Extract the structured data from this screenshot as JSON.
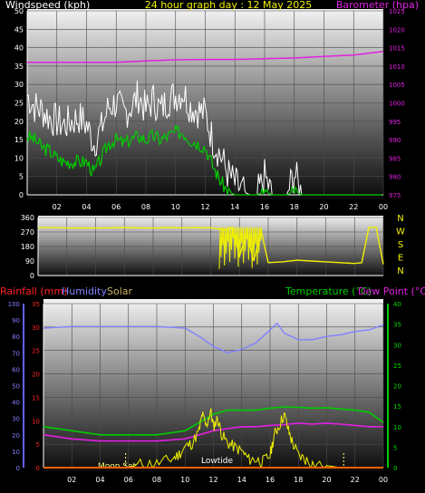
{
  "header": {
    "windspeed_label": "Windspeed (kph)",
    "date_label": "24 hour graph day : 12 May 2025",
    "barometer_label": "Barometer (hpa)"
  },
  "mid_header": {
    "rainfall_label": "Rainfall (mm)",
    "humidity_label": "Humidity",
    "solar_label": "Solar",
    "temperature_label": "Temperature (°C)",
    "dewpoint_label": "Dew Point (°C)"
  },
  "annotations": {
    "moonset": "Moon Set",
    "lowtide": "Lowtide"
  },
  "colors": {
    "wind_gust": "#ffffff",
    "wind_avg": "#00cc00",
    "barometer": "#e020e0",
    "direction": "#f0f000",
    "solar": "#f0f000",
    "humidity": "#8080ff",
    "temperature": "#00cc00",
    "dewpoint": "#e020e0",
    "rain": "#ff0000",
    "moon": "#ffff80",
    "tide": "#f0f000",
    "temp_axis": "#00dd00",
    "dew_axis": "#e020e0"
  },
  "chart_data": [
    {
      "type": "line",
      "name": "wind_barometer",
      "x_ticks": [
        "02",
        "04",
        "06",
        "08",
        "10",
        "12",
        "14",
        "16",
        "18",
        "20",
        "22",
        "00"
      ],
      "ylim": [
        0,
        50
      ],
      "y_ticks": [
        "0",
        "5",
        "10",
        "15",
        "20",
        "25",
        "30",
        "35",
        "40",
        "45",
        "50"
      ],
      "y2lim": [
        975,
        1025
      ],
      "y2_ticks": [
        "975",
        "980",
        "985",
        "990",
        "995",
        "1000",
        "1005",
        "1010",
        "1015",
        "1020",
        "1025"
      ],
      "series": [
        {
          "key": "gust",
          "x": [
            0,
            0.5,
            1,
            1.5,
            2,
            2.5,
            3,
            3.5,
            4,
            4.5,
            5,
            5.5,
            6,
            6.5,
            7,
            7.5,
            8,
            8.5,
            9,
            9.5,
            10,
            10.5,
            11,
            11.5,
            12,
            12.5,
            13,
            13.5,
            14,
            14.5,
            15,
            15.5,
            16,
            16.5,
            17,
            17.5,
            18,
            18.5,
            19,
            19.5,
            20,
            20.5,
            21,
            21.5,
            22,
            22.5,
            23,
            23.5,
            24
          ],
          "values": [
            27,
            24,
            23,
            21,
            20,
            19,
            20,
            21,
            19,
            14,
            18,
            24,
            25,
            22,
            24,
            27,
            23,
            26,
            23,
            26,
            27,
            28,
            24,
            23,
            22,
            15,
            11,
            6,
            3,
            1,
            0,
            0,
            5,
            0,
            0,
            0,
            6,
            0,
            0,
            0,
            0,
            0,
            0,
            0,
            0,
            0,
            0,
            0,
            0
          ]
        },
        {
          "key": "avg",
          "x": [
            0,
            0.5,
            1,
            1.5,
            2,
            2.5,
            3,
            3.5,
            4,
            4.5,
            5,
            5.5,
            6,
            6.5,
            7,
            7.5,
            8,
            8.5,
            9,
            9.5,
            10,
            10.5,
            11,
            11.5,
            12,
            12.5,
            13,
            13.5,
            14,
            14.5,
            15,
            15.5,
            16,
            16.5,
            17,
            17.5,
            18,
            18.5,
            19,
            19.5,
            20,
            20.5,
            21,
            21.5,
            22,
            22.5,
            23,
            23.5,
            24
          ],
          "values": [
            16,
            15,
            13,
            12,
            10,
            9,
            9,
            9,
            9,
            6,
            10,
            14,
            15,
            14,
            15,
            16,
            15,
            16,
            15,
            16,
            17,
            17,
            15,
            14,
            13,
            8,
            4,
            1,
            0,
            0,
            0,
            0,
            1,
            0,
            0,
            0,
            1,
            0,
            0,
            0,
            0,
            0,
            0,
            0,
            0,
            0,
            0,
            0,
            0
          ]
        },
        {
          "key": "barometer",
          "x": [
            0,
            2,
            4,
            6,
            8,
            10,
            12,
            14,
            16,
            18,
            20,
            22,
            24
          ],
          "values": [
            1011,
            1011,
            1011,
            1011,
            1011.4,
            1011.7,
            1011.8,
            1011.8,
            1012,
            1012.2,
            1012.6,
            1013,
            1014
          ]
        }
      ]
    },
    {
      "type": "line",
      "name": "wind_direction",
      "ylim": [
        0,
        360
      ],
      "y_ticks": [
        "0",
        "90",
        "180",
        "270",
        "360"
      ],
      "compass": [
        "N",
        "W",
        "S",
        "E",
        "N"
      ],
      "series": [
        {
          "key": "direction",
          "x": [
            0,
            1,
            2,
            3,
            4,
            5,
            6,
            7,
            8,
            9,
            10,
            11,
            12,
            12.5,
            13,
            13.5,
            14,
            14.5,
            15,
            15.5,
            16,
            17,
            18,
            19,
            20,
            21,
            22,
            22.5,
            23,
            23.5,
            24
          ],
          "values": [
            297,
            297,
            295,
            296,
            294,
            296,
            297,
            296,
            295,
            297,
            296,
            297,
            296,
            290,
            280,
            300,
            120,
            260,
            90,
            280,
            80,
            85,
            95,
            90,
            85,
            80,
            75,
            80,
            300,
            300,
            70
          ]
        }
      ]
    },
    {
      "type": "line",
      "name": "temperature_humidity_solar",
      "rain_ylim": [
        0,
        35
      ],
      "rain_ticks": [
        "0",
        "5",
        "10",
        "15",
        "20",
        "25",
        "30",
        "35"
      ],
      "humidity_ylim": [
        0,
        100
      ],
      "humidity_ticks": [
        "0",
        "10",
        "20",
        "30",
        "40",
        "50",
        "60",
        "70",
        "80",
        "90",
        "100"
      ],
      "temp_ylim": [
        0,
        40
      ],
      "temp_ticks": [
        "0",
        "5",
        "10",
        "15",
        "20",
        "25",
        "30",
        "35",
        "40"
      ],
      "series": [
        {
          "key": "humidity",
          "x": [
            0,
            2,
            4,
            6,
            8,
            10,
            11,
            12,
            13,
            14,
            15,
            16,
            16.5,
            17,
            18,
            19,
            20,
            21,
            22,
            23,
            24
          ],
          "values": [
            85,
            86,
            86,
            86,
            86,
            85,
            80,
            74,
            70,
            72,
            76,
            84,
            88,
            82,
            78,
            78,
            80,
            81,
            83,
            84,
            87
          ]
        },
        {
          "key": "temperature",
          "x": [
            0,
            2,
            4,
            6,
            8,
            10,
            11,
            12,
            13,
            14,
            15,
            16,
            17,
            18,
            19,
            20,
            21,
            22,
            23,
            24
          ],
          "values": [
            10,
            9,
            8,
            8,
            8,
            9,
            11,
            13,
            14,
            14,
            14,
            14.5,
            14.8,
            14.7,
            14.5,
            14.6,
            14.3,
            14,
            13.5,
            11
          ]
        },
        {
          "key": "dewpoint",
          "x": [
            0,
            2,
            4,
            6,
            8,
            10,
            11,
            12,
            13,
            14,
            15,
            16,
            17,
            18,
            19,
            20,
            21,
            22,
            23,
            24
          ],
          "values": [
            8,
            7,
            6.5,
            6.5,
            6.5,
            7,
            8,
            9,
            9.5,
            10,
            10,
            10.3,
            10.5,
            10.8,
            10.6,
            10.8,
            10.6,
            10.3,
            10,
            10
          ]
        },
        {
          "key": "solar",
          "x": [
            0,
            1,
            2,
            3,
            4,
            5,
            6,
            7,
            8,
            9,
            9.5,
            10,
            10.5,
            11,
            11.2,
            11.5,
            11.8,
            12,
            12.3,
            12.6,
            13,
            13.5,
            14,
            14.5,
            15,
            15.5,
            16,
            16.3,
            16.6,
            17,
            17.3,
            17.6,
            18,
            18.5,
            19,
            20,
            21,
            22,
            23,
            24
          ],
          "values": [
            0,
            0,
            0,
            0,
            0,
            0,
            0,
            1,
            1,
            2,
            3,
            5,
            6,
            9,
            13,
            10,
            14,
            10,
            12,
            8,
            6,
            5,
            4,
            2,
            2,
            1.5,
            3,
            8,
            10,
            13,
            9,
            6,
            3,
            2,
            1,
            0.5,
            0,
            0,
            0,
            0
          ]
        },
        {
          "key": "rain",
          "x": [
            0,
            24
          ],
          "values": [
            0,
            0
          ]
        }
      ]
    }
  ]
}
